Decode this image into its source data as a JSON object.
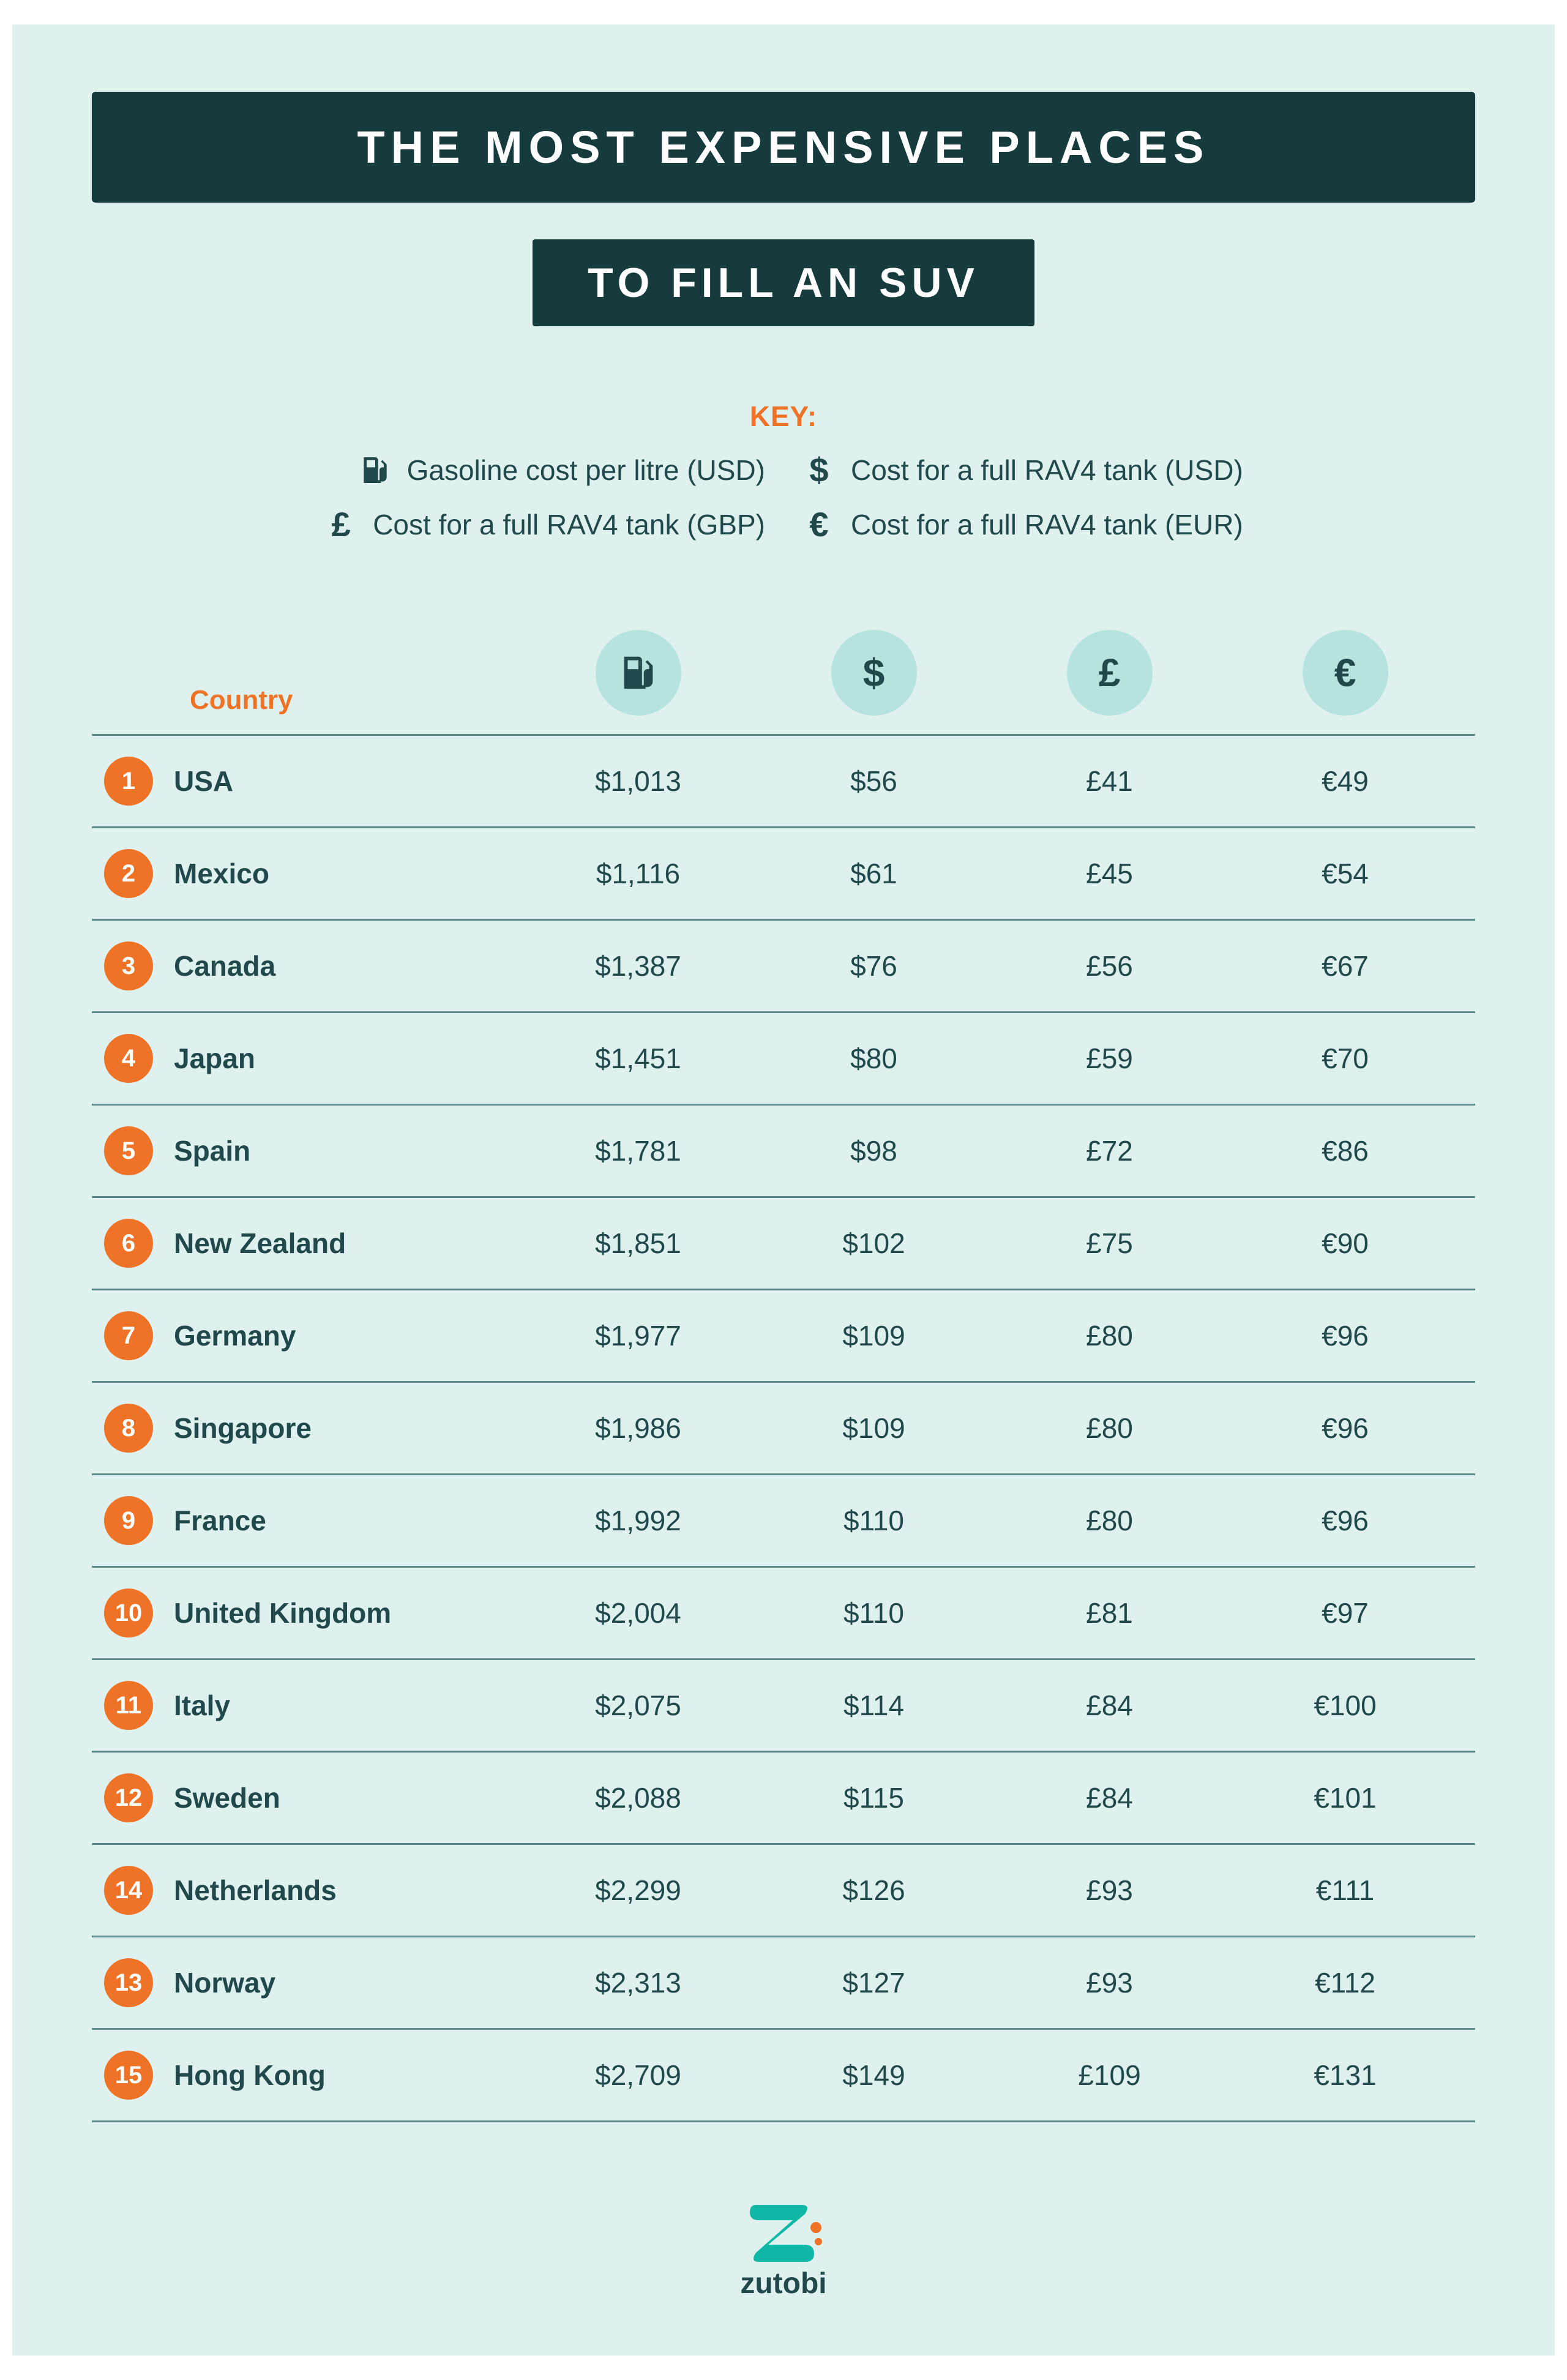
{
  "styles": {
    "bg": "#def1ee",
    "dark": "#163b3d",
    "text": "#21494b",
    "accent": "#ee7327",
    "circlebg": "#b6e3de",
    "line": "#5d8a8a"
  },
  "title": {
    "line1": "THE MOST EXPENSIVE PLACES",
    "line2": "TO FILL AN SUV"
  },
  "key": {
    "label": "KEY:",
    "items": [
      {
        "icon": "pump",
        "text": "Gasoline cost per litre (USD)"
      },
      {
        "icon": "$",
        "text": "Cost for a full RAV4 tank (USD)"
      },
      {
        "icon": "£",
        "text": "Cost for a full RAV4 tank (GBP)"
      },
      {
        "icon": "€",
        "text": "Cost for a full RAV4 tank (EUR)"
      }
    ]
  },
  "table": {
    "country_header": "Country",
    "column_icons": [
      "pump",
      "$",
      "£",
      "€"
    ],
    "rows": [
      {
        "rank": "1",
        "country": "USA",
        "litre": "$1,013",
        "usd": "$56",
        "gbp": "£41",
        "eur": "€49"
      },
      {
        "rank": "2",
        "country": "Mexico",
        "litre": "$1,116",
        "usd": "$61",
        "gbp": "£45",
        "eur": "€54"
      },
      {
        "rank": "3",
        "country": "Canada",
        "litre": "$1,387",
        "usd": "$76",
        "gbp": "£56",
        "eur": "€67"
      },
      {
        "rank": "4",
        "country": "Japan",
        "litre": "$1,451",
        "usd": "$80",
        "gbp": "£59",
        "eur": "€70"
      },
      {
        "rank": "5",
        "country": "Spain",
        "litre": "$1,781",
        "usd": "$98",
        "gbp": "£72",
        "eur": "€86"
      },
      {
        "rank": "6",
        "country": "New Zealand",
        "litre": "$1,851",
        "usd": "$102",
        "gbp": "£75",
        "eur": "€90"
      },
      {
        "rank": "7",
        "country": "Germany",
        "litre": "$1,977",
        "usd": "$109",
        "gbp": "£80",
        "eur": "€96"
      },
      {
        "rank": "8",
        "country": "Singapore",
        "litre": "$1,986",
        "usd": "$109",
        "gbp": "£80",
        "eur": "€96"
      },
      {
        "rank": "9",
        "country": "France",
        "litre": "$1,992",
        "usd": "$110",
        "gbp": "£80",
        "eur": "€96"
      },
      {
        "rank": "10",
        "country": "United Kingdom",
        "litre": "$2,004",
        "usd": "$110",
        "gbp": "£81",
        "eur": "€97"
      },
      {
        "rank": "11",
        "country": "Italy",
        "litre": "$2,075",
        "usd": "$114",
        "gbp": "£84",
        "eur": "€100"
      },
      {
        "rank": "12",
        "country": "Sweden",
        "litre": "$2,088",
        "usd": "$115",
        "gbp": "£84",
        "eur": "€101"
      },
      {
        "rank": "14",
        "country": "Netherlands",
        "litre": "$2,299",
        "usd": "$126",
        "gbp": "£93",
        "eur": "€111"
      },
      {
        "rank": "13",
        "country": "Norway",
        "litre": "$2,313",
        "usd": "$127",
        "gbp": "£93",
        "eur": "€112"
      },
      {
        "rank": "15",
        "country": "Hong Kong",
        "litre": "$2,709",
        "usd": "$149",
        "gbp": "£109",
        "eur": "€131"
      }
    ]
  },
  "footer": {
    "brand": "zutobi",
    "logo_color_primary": "#0fb8a6",
    "logo_color_accent": "#ee7327"
  }
}
